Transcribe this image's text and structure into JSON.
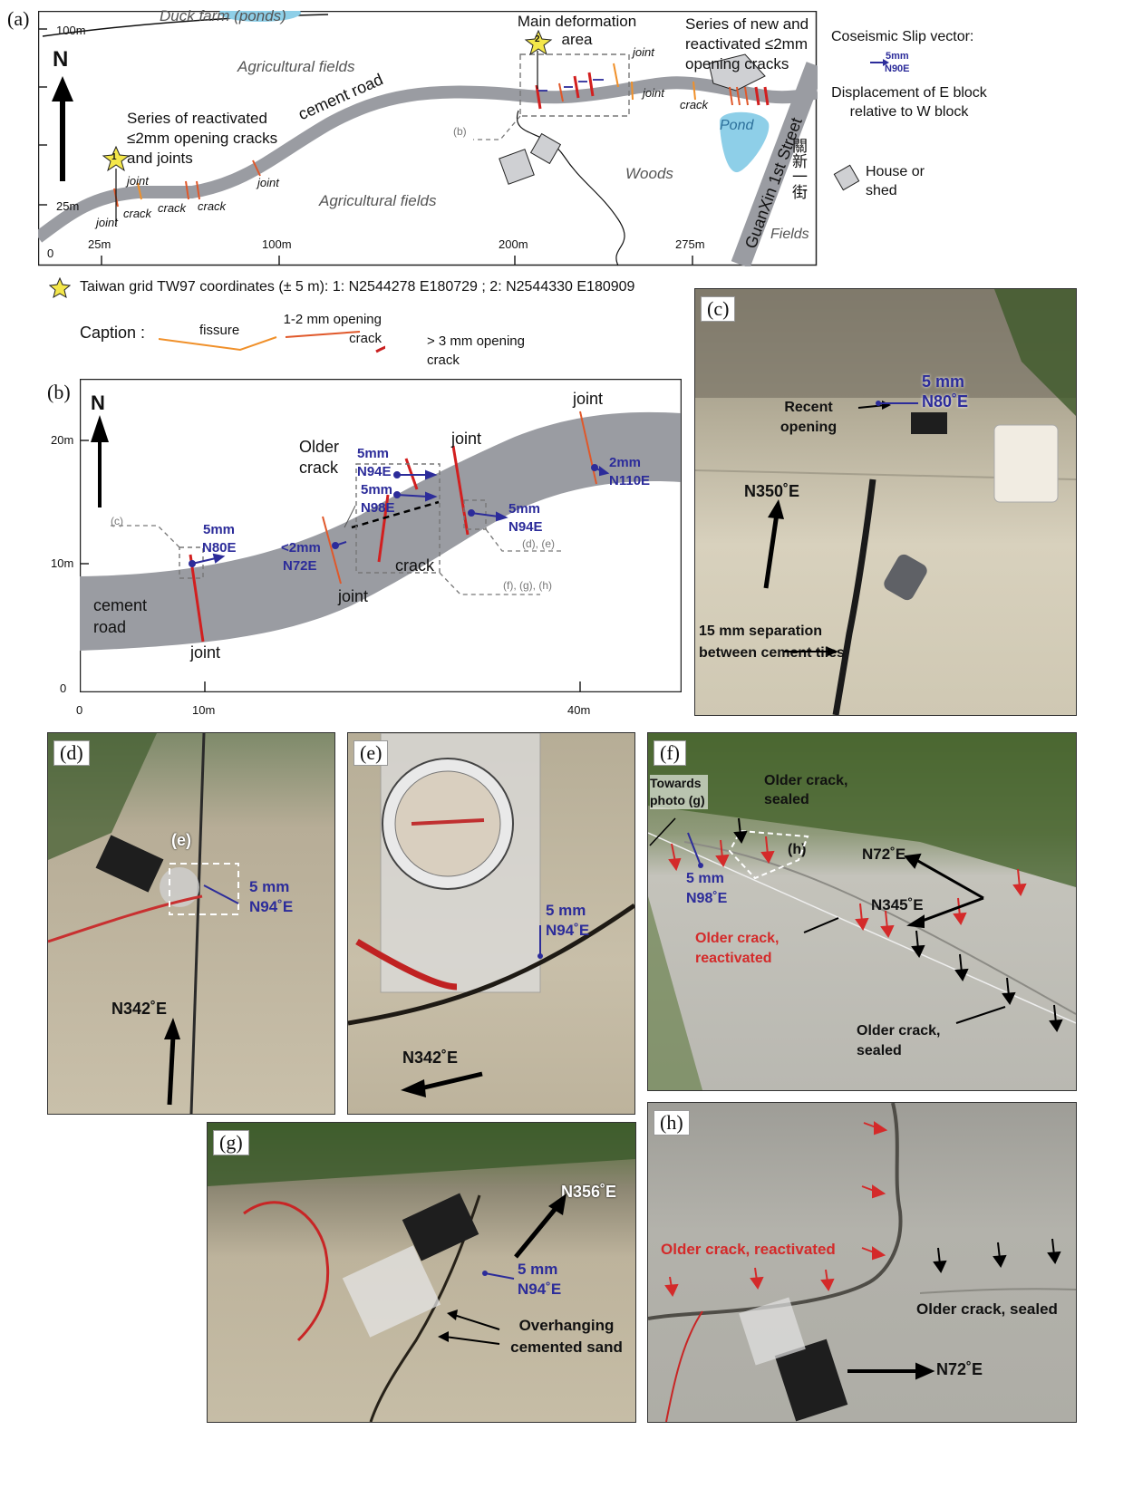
{
  "panel_a": {
    "label": "(a)",
    "duck_farm": "Duck farm (ponds)",
    "main_deformation": "Main deformation area",
    "new_cracks": "Series of new and reactivated ≤2mm opening cracks",
    "agri_top": "Agricultural fields",
    "agri_bottom": "Agricultural fields",
    "cement_road": "cement road",
    "reactivated_series": "Series of reactivated ≤2mm opening cracks and joints",
    "woods": "Woods",
    "pond": "Pond",
    "street": "GuanXin 1st Street",
    "street_cn": "關新一街",
    "fields": "Fields",
    "b_ref": "(b)",
    "star1": "1",
    "star2": "2",
    "joint": "joint",
    "crack": "crack",
    "y_ticks": [
      "100m",
      "25m",
      "0"
    ],
    "x_ticks": [
      "25m",
      "100m",
      "200m",
      "275m"
    ],
    "north": "N",
    "slip_vector_title": "Coseismic Slip vector:",
    "slip_vector_value": "5mm",
    "slip_vector_dir": "N90E",
    "slip_vector_desc": "Displacement of E block relative to W block",
    "house_legend": "House or shed",
    "coords": "Taiwan grid TW97 coordinates (± 5 m): 1: N2544278 E180729 ; 2: N2544330 E180909",
    "caption_title": "Caption :",
    "caption_fissure": "fissure",
    "caption_12mm": "1-2 mm opening crack",
    "caption_3mm": "> 3 mm opening crack"
  },
  "panel_b": {
    "label": "(b)",
    "north": "N",
    "y_ticks": [
      "20m",
      "10m",
      "0"
    ],
    "x_ticks": [
      "0",
      "10m",
      "40m"
    ],
    "cement_road": "cement road",
    "older_crack": "Older crack",
    "joint": "joint",
    "crack": "crack",
    "c_ref": "(c)",
    "de_ref": "(d), (e)",
    "fgh_ref": "(f), (g), (h)",
    "v1": "5mm",
    "v1d": "N80E",
    "v2": "<2mm",
    "v2d": "N72E",
    "v3": "5mm",
    "v3d": "N94E",
    "v4": "5mm",
    "v4d": "N98E",
    "v5": "5mm",
    "v5d": "N94E",
    "v6": "2mm",
    "v6d": "N110E"
  },
  "photo_c": {
    "label": "(c)",
    "slip": "5 mm",
    "dir": "N80˚E",
    "recent": "Recent opening",
    "north": "N350˚E",
    "separation": "15 mm separation between cement tiles"
  },
  "photo_d": {
    "label": "(d)",
    "e_ref": "(e)",
    "slip": "5 mm",
    "dir": "N94˚E",
    "north": "N342˚E"
  },
  "photo_e": {
    "label": "(e)",
    "slip": "5 mm",
    "dir": "N94˚E",
    "north": "N342˚E"
  },
  "photo_f": {
    "label": "(f)",
    "towards": "Towards photo (g)",
    "older_sealed_top": "Older crack, sealed",
    "h_ref": "(h)",
    "n72": "N72˚E",
    "n345": "N345˚E",
    "slip": "5 mm",
    "dir": "N98˚E",
    "reactivated": "Older crack, reactivated",
    "older_sealed_bottom": "Older crack, sealed"
  },
  "photo_g": {
    "label": "(g)",
    "north": "N356˚E",
    "slip": "5 mm",
    "dir": "N94˚E",
    "overhang": "Overhanging cemented sand"
  },
  "photo_h": {
    "label": "(h)",
    "reactivated": "Older crack, reactivated",
    "sealed": "Older crack, sealed",
    "n72": "N72˚E"
  }
}
